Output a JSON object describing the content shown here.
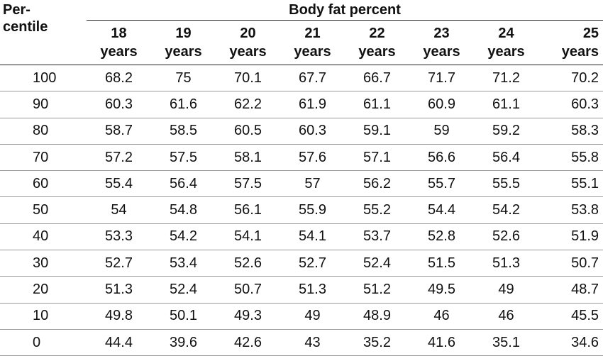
{
  "table": {
    "corner_label_line1": "Per-",
    "corner_label_line2": "centile",
    "group_title": "Body fat percent",
    "age_columns": [
      {
        "num": "18",
        "unit": "years"
      },
      {
        "num": "19",
        "unit": "years"
      },
      {
        "num": "20",
        "unit": "years"
      },
      {
        "num": "21",
        "unit": "years"
      },
      {
        "num": "22",
        "unit": "years"
      },
      {
        "num": "23",
        "unit": "years"
      },
      {
        "num": "24",
        "unit": "years"
      },
      {
        "num": "25",
        "unit": "years"
      }
    ],
    "rows": [
      {
        "percentile": "100",
        "values": [
          "68.2",
          "75",
          "70.1",
          "67.7",
          "66.7",
          "71.7",
          "71.2",
          "70.2"
        ]
      },
      {
        "percentile": "90",
        "values": [
          "60.3",
          "61.6",
          "62.2",
          "61.9",
          "61.1",
          "60.9",
          "61.1",
          "60.3"
        ]
      },
      {
        "percentile": "80",
        "values": [
          "58.7",
          "58.5",
          "60.5",
          "60.3",
          "59.1",
          "59",
          "59.2",
          "58.3"
        ]
      },
      {
        "percentile": "70",
        "values": [
          "57.2",
          "57.5",
          "58.1",
          "57.6",
          "57.1",
          "56.6",
          "56.4",
          "55.8"
        ]
      },
      {
        "percentile": "60",
        "values": [
          "55.4",
          "56.4",
          "57.5",
          "57",
          "56.2",
          "55.7",
          "55.5",
          "55.1"
        ]
      },
      {
        "percentile": "50",
        "values": [
          "54",
          "54.8",
          "56.1",
          "55.9",
          "55.2",
          "54.4",
          "54.2",
          "53.8"
        ]
      },
      {
        "percentile": "40",
        "values": [
          "53.3",
          "54.2",
          "54.1",
          "54.1",
          "53.7",
          "52.8",
          "52.6",
          "51.9"
        ]
      },
      {
        "percentile": "30",
        "values": [
          "52.7",
          "53.4",
          "52.6",
          "52.7",
          "52.4",
          "51.5",
          "51.3",
          "50.7"
        ]
      },
      {
        "percentile": "20",
        "values": [
          "51.3",
          "52.4",
          "50.7",
          "51.3",
          "51.2",
          "49.5",
          "49",
          "48.7"
        ]
      },
      {
        "percentile": "10",
        "values": [
          "49.8",
          "50.1",
          "49.3",
          "49",
          "48.9",
          "46",
          "46",
          "45.5"
        ]
      },
      {
        "percentile": "0",
        "values": [
          "44.4",
          "39.6",
          "42.6",
          "43",
          "35.2",
          "41.6",
          "35.1",
          "34.6"
        ]
      }
    ]
  }
}
